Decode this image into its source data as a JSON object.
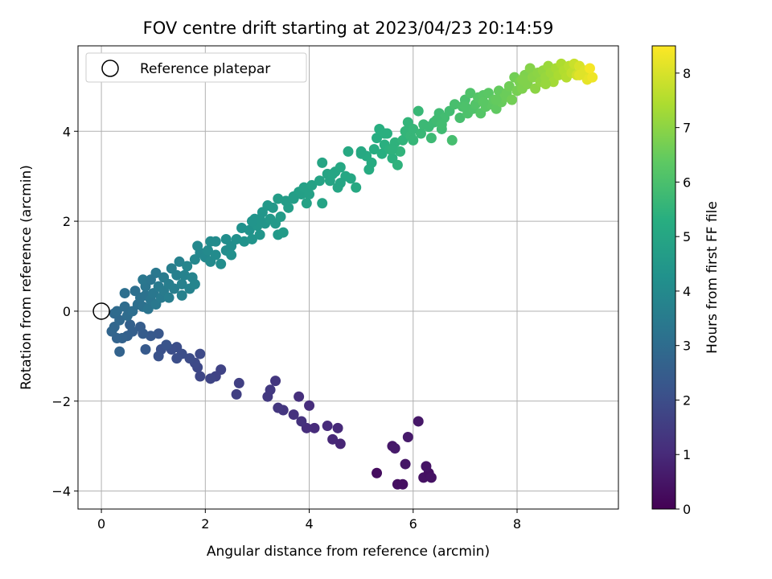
{
  "chart_data": {
    "type": "scatter",
    "title": "FOV centre drift starting at 2023/04/23 20:14:59",
    "xlabel": "Angular distance from reference (arcmin)",
    "ylabel": "Rotation from reference (arcmin)",
    "xlim": [
      -0.45,
      9.95
    ],
    "ylim": [
      -4.4,
      5.9
    ],
    "x_ticks": [
      0,
      2,
      4,
      6,
      8
    ],
    "y_ticks": [
      -4,
      -2,
      0,
      2,
      4
    ],
    "grid": true,
    "legend": {
      "placement": "top-left",
      "entries": [
        "Reference platepar"
      ]
    },
    "reference_point": {
      "x": 0,
      "y": 0
    },
    "colorbar": {
      "label": "Hours from first FF file",
      "colormap": "viridis",
      "range": [
        0,
        8.5
      ],
      "ticks": [
        0,
        1,
        2,
        3,
        4,
        5,
        6,
        7,
        8
      ]
    },
    "points": [
      [
        5.3,
        -3.6,
        0.3
      ],
      [
        5.7,
        -3.85,
        0.35
      ],
      [
        5.8,
        -3.85,
        0.35
      ],
      [
        6.2,
        -3.7,
        0.4
      ],
      [
        6.3,
        -3.6,
        0.35
      ],
      [
        6.35,
        -3.7,
        0.4
      ],
      [
        6.25,
        -3.45,
        0.45
      ],
      [
        5.85,
        -3.4,
        0.5
      ],
      [
        5.6,
        -3.0,
        0.55
      ],
      [
        5.65,
        -3.05,
        0.6
      ],
      [
        5.9,
        -2.8,
        0.6
      ],
      [
        6.1,
        -2.45,
        0.55
      ],
      [
        4.6,
        -2.95,
        0.9
      ],
      [
        4.45,
        -2.85,
        0.95
      ],
      [
        4.55,
        -2.6,
        1.0
      ],
      [
        4.35,
        -2.55,
        1.05
      ],
      [
        4.1,
        -2.6,
        1.05
      ],
      [
        3.95,
        -2.6,
        1.1
      ],
      [
        4.0,
        -2.1,
        1.1
      ],
      [
        3.8,
        -1.9,
        1.15
      ],
      [
        3.85,
        -2.45,
        1.2
      ],
      [
        3.7,
        -2.3,
        1.2
      ],
      [
        3.5,
        -2.2,
        1.3
      ],
      [
        3.4,
        -2.15,
        1.35
      ],
      [
        3.35,
        -1.55,
        1.35
      ],
      [
        3.25,
        -1.75,
        1.4
      ],
      [
        3.2,
        -1.9,
        1.4
      ],
      [
        2.65,
        -1.6,
        1.6
      ],
      [
        2.6,
        -1.85,
        1.6
      ],
      [
        2.3,
        -1.3,
        1.7
      ],
      [
        2.2,
        -1.45,
        1.7
      ],
      [
        2.1,
        -1.5,
        1.75
      ],
      [
        1.9,
        -1.45,
        1.8
      ],
      [
        1.85,
        -1.25,
        1.85
      ],
      [
        1.8,
        -1.15,
        1.9
      ],
      [
        1.9,
        -0.95,
        1.9
      ],
      [
        1.7,
        -1.05,
        1.95
      ],
      [
        1.55,
        -0.95,
        2.0
      ],
      [
        1.45,
        -0.8,
        2.0
      ],
      [
        1.45,
        -1.05,
        2.05
      ],
      [
        1.35,
        -0.85,
        2.05
      ],
      [
        1.15,
        -0.85,
        2.1
      ],
      [
        1.1,
        -1.0,
        2.15
      ],
      [
        1.25,
        -0.75,
        2.2
      ],
      [
        1.1,
        -0.5,
        2.3
      ],
      [
        0.95,
        -0.55,
        2.35
      ],
      [
        0.85,
        -0.85,
        2.4
      ],
      [
        0.8,
        -0.5,
        2.45
      ],
      [
        0.75,
        -0.35,
        2.5
      ],
      [
        0.6,
        -0.45,
        2.55
      ],
      [
        0.55,
        -0.3,
        2.6
      ],
      [
        0.5,
        -0.55,
        2.6
      ],
      [
        0.4,
        -0.6,
        2.65
      ],
      [
        0.35,
        -0.9,
        2.7
      ],
      [
        0.3,
        -0.6,
        2.7
      ],
      [
        0.2,
        -0.45,
        2.75
      ],
      [
        0.25,
        -0.35,
        2.8
      ],
      [
        0.35,
        -0.2,
        2.85
      ],
      [
        0.25,
        -0.05,
        2.9
      ],
      [
        0.3,
        0.0,
        2.95
      ],
      [
        0.45,
        0.1,
        3.0
      ],
      [
        0.5,
        -0.1,
        3.0
      ],
      [
        0.6,
        0.0,
        3.05
      ],
      [
        0.45,
        0.4,
        3.1
      ],
      [
        0.7,
        0.15,
        3.1
      ],
      [
        0.75,
        0.3,
        3.15
      ],
      [
        0.8,
        0.1,
        3.15
      ],
      [
        0.85,
        0.35,
        3.2
      ],
      [
        0.9,
        0.05,
        3.25
      ],
      [
        0.95,
        0.25,
        3.3
      ],
      [
        0.85,
        0.55,
        3.3
      ],
      [
        0.8,
        0.7,
        3.35
      ],
      [
        1.0,
        0.4,
        3.35
      ],
      [
        1.05,
        0.15,
        3.4
      ],
      [
        1.15,
        0.3,
        3.45
      ],
      [
        1.1,
        0.55,
        3.45
      ],
      [
        1.2,
        0.45,
        3.5
      ],
      [
        1.2,
        0.75,
        3.5
      ],
      [
        1.3,
        0.3,
        3.55
      ],
      [
        1.3,
        0.6,
        3.55
      ],
      [
        1.4,
        0.5,
        3.6
      ],
      [
        1.35,
        0.95,
        3.6
      ],
      [
        1.45,
        0.8,
        3.65
      ],
      [
        1.5,
        1.1,
        3.7
      ],
      [
        1.55,
        0.6,
        3.7
      ],
      [
        1.6,
        0.8,
        3.75
      ],
      [
        1.7,
        0.5,
        3.75
      ],
      [
        1.75,
        0.75,
        3.8
      ],
      [
        1.8,
        0.6,
        3.85
      ],
      [
        1.65,
        1.0,
        3.85
      ],
      [
        1.8,
        1.15,
        3.9
      ],
      [
        1.9,
        1.3,
        3.9
      ],
      [
        1.85,
        1.45,
        3.95
      ],
      [
        2.0,
        1.2,
        3.95
      ],
      [
        2.05,
        1.35,
        4.0
      ],
      [
        2.1,
        1.1,
        4.0
      ],
      [
        2.1,
        1.55,
        4.05
      ],
      [
        2.2,
        1.25,
        4.05
      ],
      [
        2.3,
        1.05,
        4.1
      ],
      [
        2.4,
        1.35,
        4.1
      ],
      [
        2.4,
        1.6,
        4.15
      ],
      [
        2.5,
        1.45,
        4.15
      ],
      [
        2.5,
        1.25,
        4.2
      ],
      [
        2.6,
        1.6,
        4.2
      ],
      [
        2.7,
        1.85,
        4.25
      ],
      [
        2.75,
        1.55,
        4.3
      ],
      [
        2.85,
        1.8,
        4.3
      ],
      [
        2.9,
        1.6,
        4.35
      ],
      [
        2.95,
        2.05,
        4.35
      ],
      [
        3.0,
        1.9,
        4.4
      ],
      [
        3.05,
        1.7,
        4.4
      ],
      [
        3.1,
        2.2,
        4.45
      ],
      [
        3.15,
        1.95,
        4.45
      ],
      [
        3.25,
        2.05,
        4.5
      ],
      [
        3.2,
        2.35,
        4.5
      ],
      [
        3.35,
        1.95,
        4.55
      ],
      [
        3.4,
        1.7,
        4.55
      ],
      [
        3.5,
        1.75,
        4.6
      ],
      [
        3.45,
        2.1,
        4.6
      ],
      [
        3.4,
        2.5,
        4.65
      ],
      [
        3.55,
        2.45,
        4.65
      ],
      [
        3.6,
        2.3,
        4.7
      ],
      [
        3.7,
        2.55,
        4.7
      ],
      [
        3.8,
        2.65,
        4.75
      ],
      [
        3.85,
        2.6,
        4.75
      ],
      [
        3.9,
        2.75,
        4.8
      ],
      [
        4.0,
        2.6,
        4.8
      ],
      [
        4.05,
        2.8,
        4.85
      ],
      [
        3.95,
        2.4,
        4.85
      ],
      [
        4.2,
        2.9,
        4.9
      ],
      [
        4.25,
        2.4,
        4.9
      ],
      [
        4.35,
        3.05,
        4.95
      ],
      [
        4.4,
        2.9,
        4.95
      ],
      [
        4.5,
        3.1,
        5.0
      ],
      [
        4.55,
        2.75,
        5.0
      ],
      [
        4.6,
        3.2,
        5.05
      ],
      [
        4.7,
        3.0,
        5.05
      ],
      [
        4.75,
        3.55,
        5.1
      ],
      [
        4.9,
        2.75,
        5.1
      ],
      [
        5.0,
        3.5,
        5.15
      ],
      [
        5.1,
        3.45,
        5.15
      ],
      [
        5.15,
        3.15,
        5.2
      ],
      [
        5.2,
        3.3,
        5.2
      ],
      [
        5.25,
        3.6,
        5.25
      ],
      [
        5.3,
        3.85,
        5.25
      ],
      [
        5.35,
        4.05,
        5.3
      ],
      [
        5.4,
        3.5,
        5.3
      ],
      [
        5.45,
        3.7,
        5.35
      ],
      [
        5.5,
        3.95,
        5.35
      ],
      [
        5.55,
        3.6,
        5.4
      ],
      [
        5.6,
        3.4,
        5.4
      ],
      [
        5.65,
        3.75,
        5.45
      ],
      [
        5.7,
        3.25,
        5.45
      ],
      [
        5.75,
        3.55,
        5.5
      ],
      [
        5.8,
        3.8,
        5.5
      ],
      [
        5.85,
        4.0,
        5.55
      ],
      [
        5.9,
        4.2,
        5.55
      ],
      [
        5.95,
        3.9,
        5.6
      ],
      [
        6.0,
        4.05,
        5.6
      ],
      [
        6.1,
        4.45,
        5.65
      ],
      [
        6.15,
        3.95,
        5.65
      ],
      [
        6.2,
        4.15,
        5.7
      ],
      [
        6.3,
        4.1,
        5.7
      ],
      [
        6.35,
        3.85,
        5.75
      ],
      [
        6.4,
        4.2,
        5.75
      ],
      [
        6.5,
        4.4,
        5.8
      ],
      [
        6.55,
        4.05,
        5.8
      ],
      [
        6.6,
        4.3,
        5.85
      ],
      [
        6.7,
        4.45,
        5.85
      ],
      [
        6.75,
        3.8,
        5.9
      ],
      [
        6.8,
        4.6,
        5.95
      ],
      [
        6.9,
        4.3,
        5.95
      ],
      [
        6.95,
        4.55,
        6.0
      ],
      [
        7.0,
        4.7,
        6.0
      ],
      [
        7.05,
        4.4,
        6.05
      ],
      [
        7.1,
        4.85,
        6.1
      ],
      [
        7.15,
        4.5,
        6.1
      ],
      [
        7.2,
        4.6,
        6.15
      ],
      [
        7.25,
        4.75,
        6.2
      ],
      [
        7.3,
        4.4,
        6.2
      ],
      [
        7.35,
        4.8,
        6.25
      ],
      [
        7.4,
        4.55,
        6.3
      ],
      [
        7.45,
        4.85,
        6.3
      ],
      [
        7.5,
        4.6,
        6.35
      ],
      [
        7.55,
        4.7,
        6.4
      ],
      [
        7.6,
        4.5,
        6.4
      ],
      [
        7.65,
        4.9,
        6.45
      ],
      [
        7.7,
        4.65,
        6.5
      ],
      [
        7.75,
        4.75,
        6.55
      ],
      [
        7.8,
        4.85,
        6.55
      ],
      [
        7.85,
        5.0,
        6.6
      ],
      [
        7.9,
        4.7,
        6.65
      ],
      [
        7.95,
        5.2,
        6.65
      ],
      [
        8.0,
        4.9,
        6.7
      ],
      [
        8.05,
        5.1,
        6.75
      ],
      [
        8.1,
        4.95,
        6.8
      ],
      [
        8.15,
        5.25,
        6.8
      ],
      [
        8.2,
        5.05,
        6.85
      ],
      [
        8.25,
        5.4,
        6.9
      ],
      [
        8.3,
        5.2,
        6.95
      ],
      [
        8.35,
        4.95,
        7.0
      ],
      [
        8.4,
        5.3,
        7.0
      ],
      [
        8.45,
        5.1,
        7.05
      ],
      [
        8.5,
        5.35,
        7.1
      ],
      [
        8.55,
        5.2,
        7.15
      ],
      [
        8.6,
        5.45,
        7.2
      ],
      [
        8.65,
        5.3,
        7.25
      ],
      [
        8.7,
        5.1,
        7.3
      ],
      [
        8.75,
        5.4,
        7.35
      ],
      [
        8.8,
        5.25,
        7.4
      ],
      [
        8.85,
        5.5,
        7.45
      ],
      [
        8.9,
        5.35,
        7.5
      ],
      [
        8.95,
        5.2,
        7.55
      ],
      [
        9.0,
        5.45,
        7.6
      ],
      [
        9.05,
        5.3,
        7.7
      ],
      [
        9.1,
        5.5,
        7.8
      ],
      [
        9.15,
        5.25,
        7.9
      ],
      [
        9.2,
        5.45,
        8.0
      ],
      [
        9.3,
        5.35,
        8.1
      ],
      [
        9.35,
        5.15,
        8.2
      ],
      [
        9.45,
        5.2,
        8.3
      ],
      [
        9.4,
        5.4,
        8.4
      ],
      [
        4.25,
        3.3,
        4.95
      ],
      [
        4.45,
        3.05,
        5.0
      ],
      [
        3.7,
        2.5,
        4.7
      ],
      [
        2.2,
        1.55,
        4.05
      ],
      [
        1.05,
        0.85,
        3.4
      ],
      [
        0.65,
        0.45,
        3.1
      ],
      [
        0.95,
        0.7,
        3.3
      ],
      [
        1.55,
        0.35,
        3.7
      ],
      [
        3.05,
        2.05,
        4.4
      ],
      [
        5.6,
        3.6,
        5.45
      ],
      [
        6.45,
        4.25,
        5.8
      ],
      [
        7.0,
        4.55,
        6.05
      ],
      [
        7.6,
        4.7,
        6.45
      ],
      [
        8.1,
        5.15,
        6.85
      ],
      [
        8.55,
        5.05,
        7.15
      ],
      [
        9.2,
        5.25,
        8.1
      ],
      [
        5.0,
        3.55,
        5.1
      ],
      [
        4.8,
        2.95,
        5.05
      ],
      [
        6.0,
        3.8,
        5.6
      ],
      [
        2.9,
        2.0,
        4.35
      ],
      [
        3.3,
        2.3,
        4.5
      ],
      [
        4.6,
        2.85,
        5.0
      ],
      [
        5.45,
        3.95,
        5.35
      ],
      [
        6.55,
        4.15,
        5.85
      ],
      [
        7.35,
        4.65,
        6.3
      ]
    ]
  }
}
